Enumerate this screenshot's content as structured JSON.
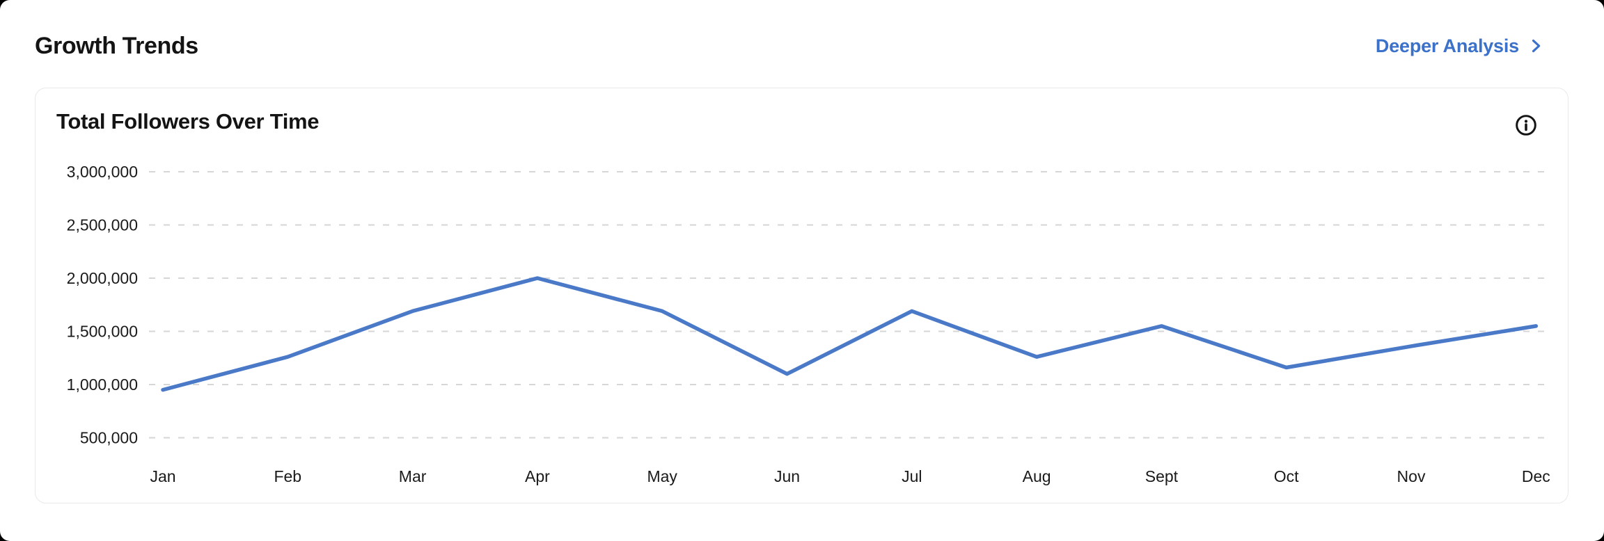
{
  "header": {
    "title": "Growth Trends",
    "link_label": "Deeper Analysis",
    "link_icon": "chevron-right"
  },
  "card": {
    "title": "Total Followers Over Time",
    "info_icon": "info-circle"
  },
  "colors": {
    "link_blue": "#3b71c8",
    "line_blue": "#4a79c8",
    "grid_gray": "#d6d6d6",
    "text_dark": "#141414",
    "tick_text": "#1a1a1a",
    "card_border": "#e9e9eb",
    "page_bg": "#ffffff"
  },
  "chart_data": {
    "type": "line",
    "title": "Total Followers Over Time",
    "categories": [
      "Jan",
      "Feb",
      "Mar",
      "Apr",
      "May",
      "Jun",
      "Jul",
      "Aug",
      "Sept",
      "Oct",
      "Nov",
      "Dec"
    ],
    "series": [
      {
        "name": "Total Followers",
        "values": [
          950000,
          1260000,
          1690000,
          2000000,
          1690000,
          1100000,
          1690000,
          1260000,
          1550000,
          1160000,
          1360000,
          1550000
        ]
      }
    ],
    "y_ticks": {
      "values": [
        3000000,
        2500000,
        2000000,
        1500000,
        1000000,
        500000
      ],
      "labels": [
        "3,000,000",
        "2,500,000",
        "2,000,000",
        "1,500,000",
        "1,000,000",
        "500,000"
      ]
    },
    "ylim": [
      500000,
      3000000
    ],
    "xlabel": "",
    "ylabel": "",
    "grid": "horizontal-dashed",
    "legend": "none"
  }
}
